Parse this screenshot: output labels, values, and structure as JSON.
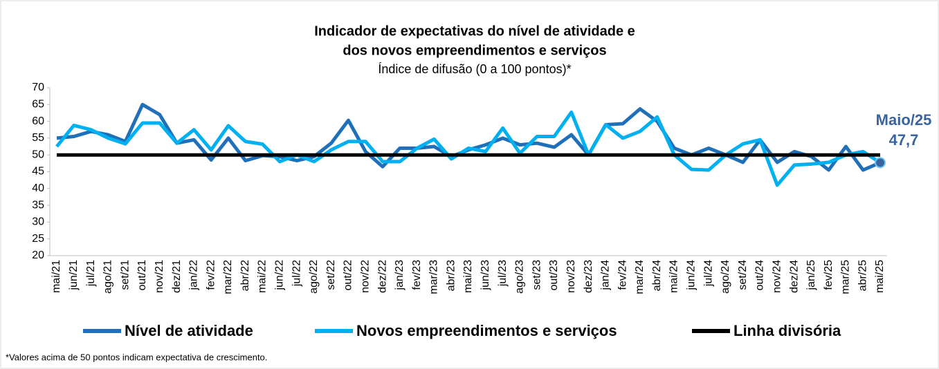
{
  "chart_data": {
    "type": "line",
    "title": [
      "Indicador de expectativas do nível de atividade e",
      "dos novos empreendimentos e serviços"
    ],
    "subtitle": "Índice de difusão (0 a 100 pontos)*",
    "footnote": "*Valores acima de 50 pontos indicam expectativa de crescimento.",
    "annotations": [
      "Maio/25",
      "47,7"
    ],
    "categories": [
      "mai/21",
      "jun/21",
      "jul/21",
      "ago/21",
      "set/21",
      "out/21",
      "nov/21",
      "dez/21",
      "jan/22",
      "fev/22",
      "mar/22",
      "abr/22",
      "mai/22",
      "jun/22",
      "jul/22",
      "ago/22",
      "set/22",
      "out/22",
      "nov/22",
      "dez/22",
      "jan/23",
      "fev/23",
      "mar/23",
      "abr/23",
      "mai/23",
      "jun/23",
      "jul/23",
      "ago/23",
      "set/23",
      "out/23",
      "nov/23",
      "dez/23",
      "jan/24",
      "fev/24",
      "mar/24",
      "abr/24",
      "mai/24",
      "jun/24",
      "jul/24",
      "ago/24",
      "set/24",
      "out/24",
      "nov/24",
      "dez/24",
      "jan/25",
      "fev/25",
      "mar/25",
      "abr/25",
      "mai/25"
    ],
    "series": [
      {
        "name": "Nível de atividade",
        "color": "#1f70b8",
        "values": [
          55,
          55.5,
          57,
          56,
          54,
          65,
          62,
          53.5,
          54.5,
          48.5,
          55,
          48.3,
          49.8,
          49.5,
          48.3,
          49.5,
          53.5,
          60.3,
          51,
          46.5,
          52,
          52,
          52.5,
          49.5,
          51.5,
          53,
          55,
          53,
          53.5,
          52.3,
          56,
          50,
          59,
          59.3,
          63.7,
          60,
          52,
          50,
          52,
          50,
          47.8,
          54.5,
          47.8,
          51,
          49.5,
          45.5,
          52.5,
          45.5,
          47.7
        ]
      },
      {
        "name": "Novos empreendimentos e serviços",
        "color": "#00b0f0",
        "values": [
          52.5,
          58.8,
          57.5,
          55,
          53.3,
          59.5,
          59.5,
          53.5,
          57.5,
          51.5,
          58.7,
          54,
          53.2,
          48,
          50,
          48,
          51.5,
          54,
          54,
          48,
          48,
          52,
          54.7,
          48.8,
          52,
          51,
          58,
          50.5,
          55.5,
          55.5,
          62.7,
          50,
          59,
          55,
          57,
          61.3,
          50,
          45.7,
          45.5,
          50,
          53.3,
          54.5,
          41,
          47,
          47.3,
          47.8,
          50,
          51,
          47.7
        ]
      },
      {
        "name": "Linha divisória",
        "color": "#000000",
        "values": [
          50,
          50,
          50,
          50,
          50,
          50,
          50,
          50,
          50,
          50,
          50,
          50,
          50,
          50,
          50,
          50,
          50,
          50,
          50,
          50,
          50,
          50,
          50,
          50,
          50,
          50,
          50,
          50,
          50,
          50,
          50,
          50,
          50,
          50,
          50,
          50,
          50,
          50,
          50,
          50,
          50,
          50,
          50,
          50,
          50,
          50,
          50,
          50,
          50
        ]
      }
    ],
    "ylim": [
      20,
      70
    ],
    "yticks": [
      20,
      25,
      30,
      35,
      40,
      45,
      50,
      55,
      60,
      65,
      70
    ]
  }
}
